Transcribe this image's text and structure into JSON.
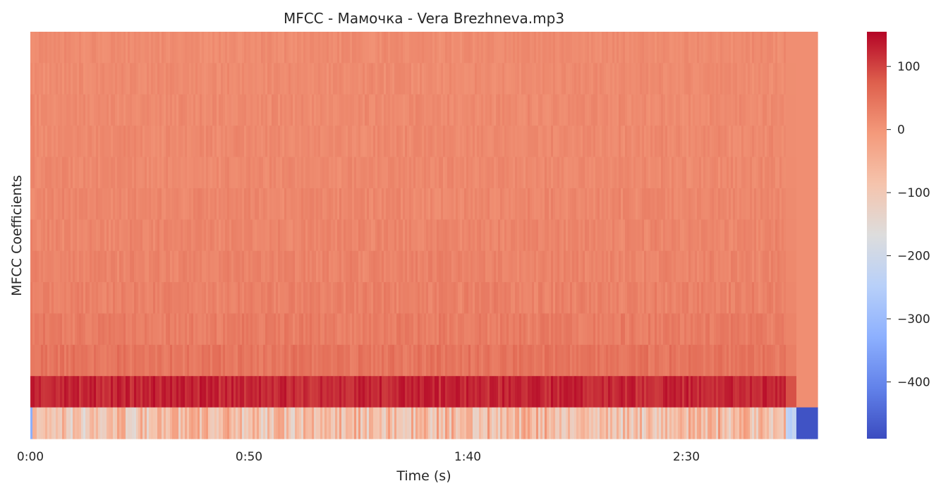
{
  "chart_data": {
    "type": "heatmap",
    "title": "MFCC - Мамочка - Vera Brezhneva.mp3",
    "xlabel": "Time (s)",
    "ylabel": "MFCC Coefficients",
    "duration_s": 180,
    "audio_end_s": 175,
    "xlim": [
      0,
      180
    ],
    "x_ticks": [
      {
        "value": 0,
        "label": "0:00"
      },
      {
        "value": 50,
        "label": "0:50"
      },
      {
        "value": 100,
        "label": "1:40"
      },
      {
        "value": 150,
        "label": "2:30"
      }
    ],
    "n_coefficients": 13,
    "coefficient_means": [
      -70,
      125,
      45,
      35,
      28,
      25,
      22,
      20,
      18,
      17,
      16,
      15,
      14
    ],
    "coefficient_spread": [
      70,
      20,
      15,
      14,
      13,
      12,
      11,
      11,
      10,
      10,
      10,
      9,
      9
    ],
    "silence_value": -480,
    "silence_low_coeff_value": 10,
    "colormap": "coolwarm",
    "colorbar": {
      "min": -490,
      "max": 155,
      "ticks": [
        {
          "value": 100,
          "label": "100"
        },
        {
          "value": 0,
          "label": "0"
        },
        {
          "value": -100,
          "label": "−100"
        },
        {
          "value": -200,
          "label": "−200"
        },
        {
          "value": -300,
          "label": "−300"
        },
        {
          "value": -400,
          "label": "−400"
        }
      ]
    },
    "grid": false
  }
}
